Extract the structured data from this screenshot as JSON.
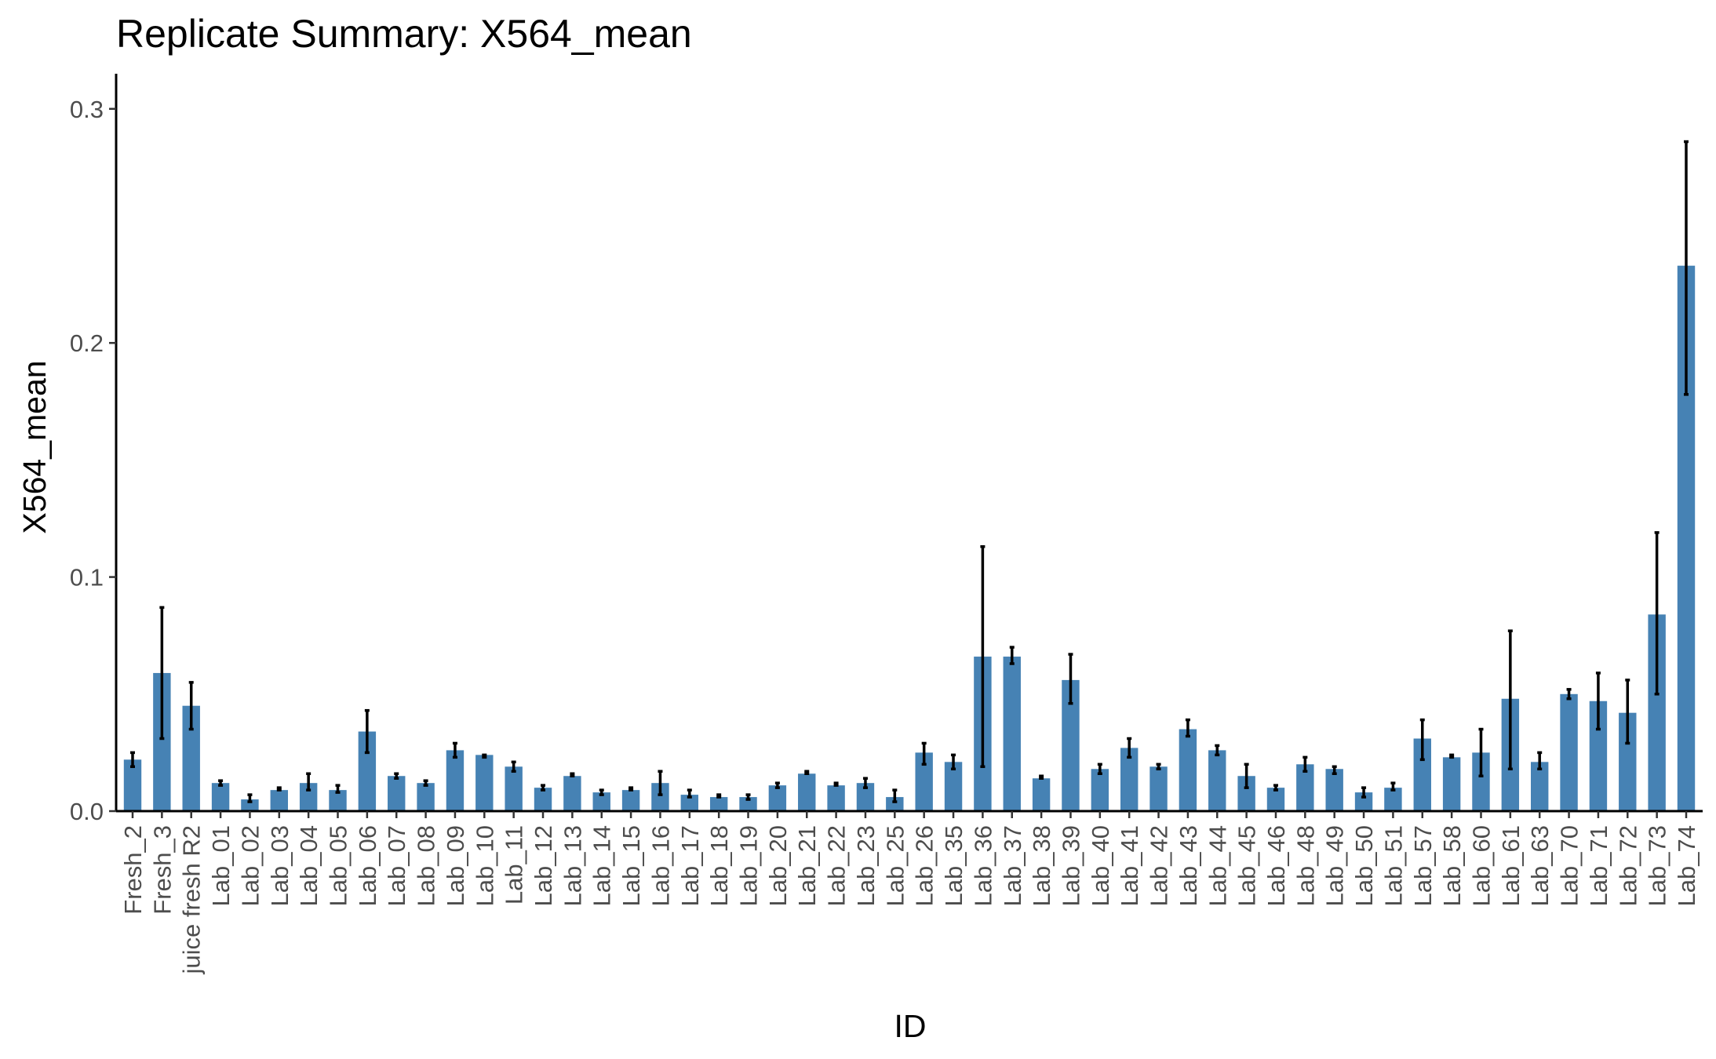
{
  "chart_data": {
    "type": "bar",
    "title": "Replicate Summary: X564_mean",
    "xlabel": "ID",
    "ylabel": "X564_mean",
    "ylim": [
      0,
      0.315
    ],
    "yticks": [
      0.0,
      0.1,
      0.2,
      0.3
    ],
    "ytick_labels": [
      "0.0",
      "0.1",
      "0.2",
      "0.3"
    ],
    "grid": false,
    "legend": "none",
    "bar_color": "#4682B4",
    "errorbar_color": "#000000",
    "categories": [
      "Fresh_2",
      "Fresh_3",
      "juice fresh R2",
      "Lab_01",
      "Lab_02",
      "Lab_03",
      "Lab_04",
      "Lab_05",
      "Lab_06",
      "Lab_07",
      "Lab_08",
      "Lab_09",
      "Lab_10",
      "Lab_11",
      "Lab_12",
      "Lab_13",
      "Lab_14",
      "Lab_15",
      "Lab_16",
      "Lab_17",
      "Lab_18",
      "Lab_19",
      "Lab_20",
      "Lab_21",
      "Lab_22",
      "Lab_23",
      "Lab_25",
      "Lab_26",
      "Lab_35",
      "Lab_36",
      "Lab_37",
      "Lab_38",
      "Lab_39",
      "Lab_40",
      "Lab_41",
      "Lab_42",
      "Lab_43",
      "Lab_44",
      "Lab_45",
      "Lab_46",
      "Lab_48",
      "Lab_49",
      "Lab_50",
      "Lab_51",
      "Lab_57",
      "Lab_58",
      "Lab_60",
      "Lab_61",
      "Lab_63",
      "Lab_70",
      "Lab_71",
      "Lab_72",
      "Lab_73",
      "Lab_74"
    ],
    "values": [
      0.022,
      0.059,
      0.045,
      0.012,
      0.005,
      0.009,
      0.012,
      0.009,
      0.034,
      0.015,
      0.012,
      0.026,
      0.024,
      0.019,
      0.01,
      0.015,
      0.008,
      0.009,
      0.012,
      0.007,
      0.006,
      0.006,
      0.011,
      0.016,
      0.011,
      0.012,
      0.006,
      0.025,
      0.021,
      0.066,
      0.066,
      0.014,
      0.056,
      0.018,
      0.027,
      0.019,
      0.035,
      0.026,
      0.015,
      0.01,
      0.02,
      0.018,
      0.008,
      0.01,
      0.031,
      0.023,
      0.025,
      0.048,
      0.021,
      0.05,
      0.047,
      0.042,
      0.084,
      0.233
    ],
    "error_low": [
      0.019,
      0.031,
      0.035,
      0.011,
      0.004,
      0.009,
      0.009,
      0.008,
      0.025,
      0.014,
      0.011,
      0.023,
      0.023,
      0.017,
      0.009,
      0.015,
      0.007,
      0.009,
      0.007,
      0.006,
      0.006,
      0.005,
      0.01,
      0.016,
      0.011,
      0.01,
      0.004,
      0.02,
      0.018,
      0.019,
      0.063,
      0.014,
      0.046,
      0.016,
      0.023,
      0.018,
      0.032,
      0.024,
      0.01,
      0.009,
      0.017,
      0.016,
      0.006,
      0.009,
      0.022,
      0.023,
      0.015,
      0.018,
      0.018,
      0.048,
      0.035,
      0.029,
      0.05,
      0.178
    ],
    "error_high": [
      0.025,
      0.087,
      0.055,
      0.013,
      0.007,
      0.01,
      0.016,
      0.011,
      0.043,
      0.016,
      0.013,
      0.029,
      0.024,
      0.021,
      0.011,
      0.016,
      0.009,
      0.01,
      0.017,
      0.009,
      0.007,
      0.007,
      0.012,
      0.017,
      0.012,
      0.014,
      0.009,
      0.029,
      0.024,
      0.113,
      0.07,
      0.015,
      0.067,
      0.02,
      0.031,
      0.02,
      0.039,
      0.028,
      0.02,
      0.011,
      0.023,
      0.019,
      0.01,
      0.012,
      0.039,
      0.024,
      0.035,
      0.077,
      0.025,
      0.052,
      0.059,
      0.056,
      0.119,
      0.286
    ]
  }
}
